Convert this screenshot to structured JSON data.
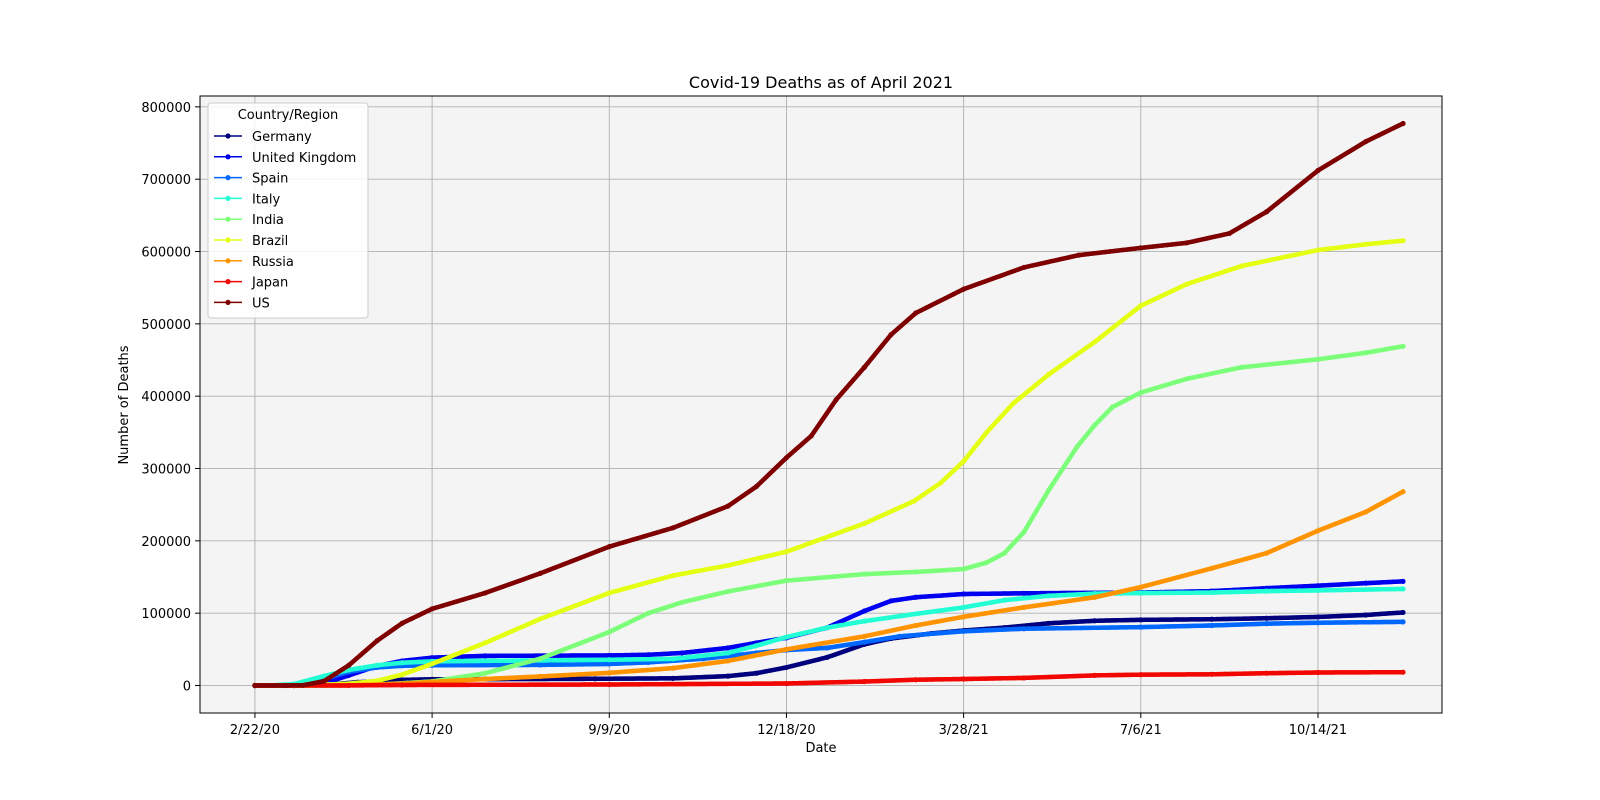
{
  "chart_data": {
    "type": "line",
    "title": "Covid-19 Deaths as of April 2021",
    "xlabel": "Date",
    "ylabel": "Number of Deaths",
    "ylim": [
      -38000,
      815000
    ],
    "xlim": [
      "2020-01-22",
      "2021-12-23"
    ],
    "x_ticks": [
      {
        "date": "2020-02-22",
        "label": "2/22/20"
      },
      {
        "date": "2020-06-01",
        "label": "6/1/20"
      },
      {
        "date": "2020-09-09",
        "label": "9/9/20"
      },
      {
        "date": "2020-12-18",
        "label": "12/18/20"
      },
      {
        "date": "2021-03-28",
        "label": "3/28/21"
      },
      {
        "date": "2021-07-06",
        "label": "7/6/21"
      },
      {
        "date": "2021-10-14",
        "label": "10/14/21"
      }
    ],
    "y_ticks": [
      0,
      100000,
      200000,
      300000,
      400000,
      500000,
      600000,
      700000,
      800000
    ],
    "grid": true,
    "plot_background": "#f4f4f4",
    "legend": {
      "title": "Country/Region",
      "position": "top-left"
    },
    "series": [
      {
        "name": "Germany",
        "color": "#00007f",
        "points": [
          [
            "2020-02-22",
            0
          ],
          [
            "2020-03-15",
            50
          ],
          [
            "2020-04-01",
            900
          ],
          [
            "2020-04-20",
            4500
          ],
          [
            "2020-05-15",
            7800
          ],
          [
            "2020-06-01",
            8600
          ],
          [
            "2020-09-01",
            9300
          ],
          [
            "2020-10-15",
            9900
          ],
          [
            "2020-11-15",
            13000
          ],
          [
            "2020-12-01",
            17000
          ],
          [
            "2020-12-18",
            25000
          ],
          [
            "2021-01-10",
            39000
          ],
          [
            "2021-01-31",
            57000
          ],
          [
            "2021-02-15",
            65000
          ],
          [
            "2021-03-10",
            72000
          ],
          [
            "2021-03-28",
            76000
          ],
          [
            "2021-04-20",
            80000
          ],
          [
            "2021-05-15",
            86000
          ],
          [
            "2021-06-10",
            89500
          ],
          [
            "2021-07-06",
            90800
          ],
          [
            "2021-08-15",
            91600
          ],
          [
            "2021-09-15",
            93000
          ],
          [
            "2021-10-14",
            94800
          ],
          [
            "2021-11-10",
            97500
          ],
          [
            "2021-12-01",
            101000
          ]
        ]
      },
      {
        "name": "United Kingdom",
        "color": "#0000f1",
        "points": [
          [
            "2020-02-22",
            0
          ],
          [
            "2020-03-15",
            50
          ],
          [
            "2020-04-01",
            3000
          ],
          [
            "2020-04-15",
            14000
          ],
          [
            "2020-05-01",
            27000
          ],
          [
            "2020-05-15",
            34000
          ],
          [
            "2020-06-01",
            38500
          ],
          [
            "2020-07-01",
            41000
          ],
          [
            "2020-09-09",
            41600
          ],
          [
            "2020-10-01",
            42500
          ],
          [
            "2020-10-20",
            45000
          ],
          [
            "2020-11-15",
            52000
          ],
          [
            "2020-12-01",
            59000
          ],
          [
            "2020-12-18",
            66000
          ],
          [
            "2021-01-10",
            80000
          ],
          [
            "2021-01-31",
            103000
          ],
          [
            "2021-02-15",
            117000
          ],
          [
            "2021-03-01",
            122000
          ],
          [
            "2021-03-28",
            126500
          ],
          [
            "2021-05-01",
            127500
          ],
          [
            "2021-07-06",
            128500
          ],
          [
            "2021-08-15",
            130500
          ],
          [
            "2021-09-15",
            134500
          ],
          [
            "2021-10-14",
            138000
          ],
          [
            "2021-11-10",
            141500
          ],
          [
            "2021-12-01",
            144000
          ]
        ]
      },
      {
        "name": "Spain",
        "color": "#0068ff",
        "points": [
          [
            "2020-02-22",
            0
          ],
          [
            "2020-03-15",
            200
          ],
          [
            "2020-04-01",
            9000
          ],
          [
            "2020-04-15",
            19000
          ],
          [
            "2020-05-01",
            25000
          ],
          [
            "2020-05-15",
            27300
          ],
          [
            "2020-06-01",
            28000
          ],
          [
            "2020-08-01",
            28500
          ],
          [
            "2020-09-09",
            29800
          ],
          [
            "2020-10-01",
            32000
          ],
          [
            "2020-11-01",
            37000
          ],
          [
            "2020-12-01",
            45000
          ],
          [
            "2020-12-18",
            49000
          ],
          [
            "2021-01-10",
            52000
          ],
          [
            "2021-01-31",
            60000
          ],
          [
            "2021-02-20",
            68000
          ],
          [
            "2021-03-28",
            75000
          ],
          [
            "2021-05-01",
            78500
          ],
          [
            "2021-07-06",
            80700
          ],
          [
            "2021-08-15",
            83000
          ],
          [
            "2021-09-15",
            85500
          ],
          [
            "2021-10-14",
            86800
          ],
          [
            "2021-12-01",
            88000
          ]
        ]
      },
      {
        "name": "Italy",
        "color": "#23ffd4",
        "points": [
          [
            "2020-02-22",
            0
          ],
          [
            "2020-03-01",
            30
          ],
          [
            "2020-03-15",
            2000
          ],
          [
            "2020-04-01",
            13000
          ],
          [
            "2020-04-15",
            21600
          ],
          [
            "2020-05-01",
            28000
          ],
          [
            "2020-05-15",
            31500
          ],
          [
            "2020-06-01",
            33400
          ],
          [
            "2020-09-09",
            35600
          ],
          [
            "2020-10-15",
            36800
          ],
          [
            "2020-11-15",
            45000
          ],
          [
            "2020-12-01",
            55000
          ],
          [
            "2020-12-18",
            67000
          ],
          [
            "2021-01-10",
            80000
          ],
          [
            "2021-01-31",
            89000
          ],
          [
            "2021-02-20",
            96000
          ],
          [
            "2021-03-28",
            108000
          ],
          [
            "2021-04-20",
            118000
          ],
          [
            "2021-05-15",
            124000
          ],
          [
            "2021-06-10",
            127000
          ],
          [
            "2021-07-06",
            127800
          ],
          [
            "2021-08-15",
            128500
          ],
          [
            "2021-09-15",
            130500
          ],
          [
            "2021-10-14",
            131500
          ],
          [
            "2021-12-01",
            133500
          ]
        ]
      },
      {
        "name": "India",
        "color": "#7cff79",
        "points": [
          [
            "2020-02-22",
            0
          ],
          [
            "2020-04-01",
            50
          ],
          [
            "2020-05-01",
            1100
          ],
          [
            "2020-06-01",
            5600
          ],
          [
            "2020-07-01",
            17000
          ],
          [
            "2020-08-01",
            37000
          ],
          [
            "2020-09-09",
            74000
          ],
          [
            "2020-10-01",
            100000
          ],
          [
            "2020-10-20",
            115000
          ],
          [
            "2020-11-15",
            130000
          ],
          [
            "2020-12-18",
            145000
          ],
          [
            "2021-01-31",
            154000
          ],
          [
            "2021-03-01",
            157000
          ],
          [
            "2021-03-28",
            161000
          ],
          [
            "2021-04-10",
            170000
          ],
          [
            "2021-04-20",
            183000
          ],
          [
            "2021-05-01",
            212000
          ],
          [
            "2021-05-15",
            270000
          ],
          [
            "2021-05-31",
            330000
          ],
          [
            "2021-06-10",
            360000
          ],
          [
            "2021-06-20",
            385000
          ],
          [
            "2021-07-06",
            405000
          ],
          [
            "2021-08-01",
            424000
          ],
          [
            "2021-09-01",
            440000
          ],
          [
            "2021-10-14",
            451000
          ],
          [
            "2021-11-10",
            460000
          ],
          [
            "2021-12-01",
            469000
          ]
        ]
      },
      {
        "name": "Brazil",
        "color": "#e4ff13",
        "points": [
          [
            "2020-02-22",
            0
          ],
          [
            "2020-03-20",
            50
          ],
          [
            "2020-04-15",
            2500
          ],
          [
            "2020-05-01",
            6500
          ],
          [
            "2020-05-15",
            15000
          ],
          [
            "2020-06-01",
            30000
          ],
          [
            "2020-07-01",
            59000
          ],
          [
            "2020-08-01",
            92000
          ],
          [
            "2020-09-09",
            128000
          ],
          [
            "2020-10-15",
            152000
          ],
          [
            "2020-11-15",
            166000
          ],
          [
            "2020-12-18",
            185000
          ],
          [
            "2021-01-31",
            224000
          ],
          [
            "2021-02-28",
            255000
          ],
          [
            "2021-03-15",
            280000
          ],
          [
            "2021-03-28",
            310000
          ],
          [
            "2021-04-10",
            350000
          ],
          [
            "2021-04-25",
            390000
          ],
          [
            "2021-05-15",
            430000
          ],
          [
            "2021-06-10",
            475000
          ],
          [
            "2021-07-06",
            525000
          ],
          [
            "2021-08-01",
            555000
          ],
          [
            "2021-09-01",
            580000
          ],
          [
            "2021-10-14",
            602000
          ],
          [
            "2021-11-10",
            610000
          ],
          [
            "2021-12-01",
            615000
          ]
        ]
      },
      {
        "name": "Russia",
        "color": "#ff9400",
        "points": [
          [
            "2020-02-22",
            0
          ],
          [
            "2020-04-15",
            200
          ],
          [
            "2020-05-15",
            2500
          ],
          [
            "2020-06-01",
            5000
          ],
          [
            "2020-07-01",
            9000
          ],
          [
            "2020-08-01",
            12500
          ],
          [
            "2020-09-09",
            17500
          ],
          [
            "2020-10-15",
            24000
          ],
          [
            "2020-11-15",
            34000
          ],
          [
            "2020-12-18",
            50000
          ],
          [
            "2021-01-31",
            68000
          ],
          [
            "2021-03-01",
            83000
          ],
          [
            "2021-03-28",
            95000
          ],
          [
            "2021-05-01",
            108000
          ],
          [
            "2021-06-10",
            122000
          ],
          [
            "2021-07-06",
            136000
          ],
          [
            "2021-08-15",
            162000
          ],
          [
            "2021-09-15",
            183000
          ],
          [
            "2021-10-14",
            214000
          ],
          [
            "2021-11-10",
            240000
          ],
          [
            "2021-12-01",
            268000
          ]
        ]
      },
      {
        "name": "Japan",
        "color": "#f10800",
        "points": [
          [
            "2020-02-22",
            0
          ],
          [
            "2020-04-15",
            100
          ],
          [
            "2020-05-15",
            750
          ],
          [
            "2020-09-09",
            1400
          ],
          [
            "2020-12-18",
            2800
          ],
          [
            "2021-01-31",
            5500
          ],
          [
            "2021-03-01",
            8000
          ],
          [
            "2021-03-28",
            9000
          ],
          [
            "2021-05-01",
            10500
          ],
          [
            "2021-06-10",
            14000
          ],
          [
            "2021-07-06",
            15000
          ],
          [
            "2021-08-15",
            15500
          ],
          [
            "2021-09-15",
            17000
          ],
          [
            "2021-10-14",
            18000
          ],
          [
            "2021-12-01",
            18400
          ]
        ]
      },
      {
        "name": "US",
        "color": "#7f0000",
        "points": [
          [
            "2020-02-22",
            0
          ],
          [
            "2020-03-10",
            50
          ],
          [
            "2020-03-20",
            300
          ],
          [
            "2020-04-01",
            6000
          ],
          [
            "2020-04-15",
            28000
          ],
          [
            "2020-05-01",
            62000
          ],
          [
            "2020-05-15",
            86000
          ],
          [
            "2020-06-01",
            106000
          ],
          [
            "2020-07-01",
            128000
          ],
          [
            "2020-08-01",
            155000
          ],
          [
            "2020-09-09",
            192000
          ],
          [
            "2020-10-15",
            218000
          ],
          [
            "2020-11-15",
            248000
          ],
          [
            "2020-12-01",
            275000
          ],
          [
            "2020-12-18",
            315000
          ],
          [
            "2021-01-01",
            345000
          ],
          [
            "2021-01-15",
            395000
          ],
          [
            "2021-01-31",
            440000
          ],
          [
            "2021-02-15",
            485000
          ],
          [
            "2021-03-01",
            515000
          ],
          [
            "2021-03-28",
            548000
          ],
          [
            "2021-05-01",
            578000
          ],
          [
            "2021-06-01",
            595000
          ],
          [
            "2021-07-06",
            605000
          ],
          [
            "2021-08-01",
            612000
          ],
          [
            "2021-08-25",
            625000
          ],
          [
            "2021-09-15",
            655000
          ],
          [
            "2021-10-14",
            712000
          ],
          [
            "2021-11-10",
            752000
          ],
          [
            "2021-12-01",
            777000
          ]
        ]
      }
    ]
  }
}
